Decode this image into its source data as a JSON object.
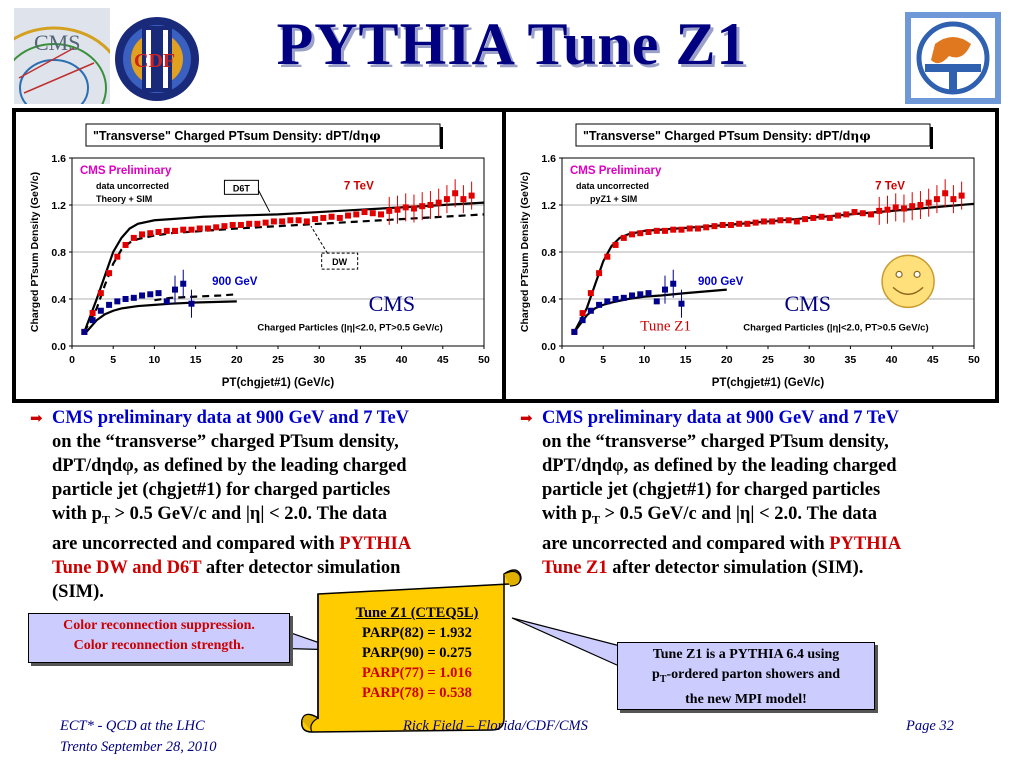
{
  "title": "PYTHIA Tune Z1",
  "colors": {
    "title": "#000080",
    "red": "#cc0000",
    "blue": "#0000cc",
    "callout_bg": "#ccccff",
    "scroll_bg": "#ffcc00"
  },
  "charts": {
    "left": {
      "title_pre": "\"Transverse\" Charged PTsum Density: dPT/d",
      "title_greek": "ηφ",
      "xlabel": "PT(chgjet#1) (GeV/c)",
      "ylabel": "Charged PTsum Density (GeV/c)",
      "prelim": "CMS Preliminary",
      "note1": "data uncorrected",
      "note2": "Theory + SIM",
      "label_7tev": "7 TeV",
      "label_900": "900 GeV",
      "label_cms": "CMS",
      "label_cuts": "Charged Particles (|η|<2.0, PT>0.5 GeV/c)",
      "box_d6t": "D6T",
      "box_dw": "DW"
    },
    "right": {
      "title_pre": "\"Transverse\" Charged PTsum Density: dPT/d",
      "title_greek": "ηφ",
      "xlabel": "PT(chgjet#1) (GeV/c)",
      "ylabel": "Charged PTsum Density (GeV/c)",
      "prelim": "CMS Preliminary",
      "note1": "data uncorrected",
      "note2": "pyZ1 + SIM",
      "label_7tev": "7 TeV",
      "label_900": "900 GeV",
      "label_cms": "CMS",
      "label_tune": "Tune Z1",
      "label_cuts": "Charged Particles (|η|<2.0, PT>0.5 GeV/c)"
    }
  },
  "chart_data": [
    {
      "type": "scatter",
      "title": "\"Transverse\" Charged PTsum Density: dPT/dηdφ",
      "xlabel": "PT(chgjet#1) (GeV/c)",
      "ylabel": "Charged PTsum Density (GeV/c)",
      "xlim": [
        0,
        50
      ],
      "ylim": [
        0.0,
        1.6
      ],
      "xticks": [
        0,
        5,
        10,
        15,
        20,
        25,
        30,
        35,
        40,
        45,
        50
      ],
      "yticks": [
        0.0,
        0.4,
        0.8,
        1.2,
        1.6
      ],
      "series": [
        {
          "name": "7 TeV",
          "kind": "points",
          "color": "#e00000",
          "x": [
            1.5,
            2.5,
            3.5,
            4.5,
            5.5,
            6.5,
            7.5,
            8.5,
            9.5,
            10.5,
            11.5,
            12.5,
            13.5,
            14.5,
            15.5,
            16.5,
            17.5,
            18.5,
            19.5,
            20.5,
            21.5,
            22.5,
            23.5,
            24.5,
            25.5,
            26.5,
            27.5,
            28.5,
            29.5,
            30.5,
            31.5,
            32.5,
            33.5,
            34.5,
            35.5,
            36.5,
            37.5,
            38.5,
            39.5,
            40.5,
            41.5,
            42.5,
            43.5,
            44.5,
            45.5,
            46.5,
            47.5,
            48.5
          ],
          "y": [
            0.12,
            0.28,
            0.45,
            0.62,
            0.76,
            0.86,
            0.92,
            0.95,
            0.96,
            0.97,
            0.98,
            0.98,
            0.99,
            0.99,
            1.0,
            1.0,
            1.01,
            1.02,
            1.03,
            1.03,
            1.04,
            1.04,
            1.05,
            1.06,
            1.06,
            1.07,
            1.07,
            1.06,
            1.08,
            1.09,
            1.1,
            1.09,
            1.11,
            1.12,
            1.14,
            1.13,
            1.12,
            1.15,
            1.16,
            1.18,
            1.17,
            1.19,
            1.2,
            1.22,
            1.25,
            1.3,
            1.25,
            1.28
          ]
        },
        {
          "name": "900 GeV",
          "kind": "points",
          "color": "#00008b",
          "x": [
            1.5,
            2.5,
            3.5,
            4.5,
            5.5,
            6.5,
            7.5,
            8.5,
            9.5,
            10.5,
            11.5,
            12.5,
            13.5,
            14.5
          ],
          "y": [
            0.12,
            0.22,
            0.3,
            0.35,
            0.38,
            0.4,
            0.41,
            0.43,
            0.44,
            0.45,
            0.38,
            0.48,
            0.53,
            0.36
          ]
        },
        {
          "name": "D6T",
          "kind": "line",
          "color": "#000000",
          "x": [
            1.5,
            3,
            4,
            5,
            6,
            7,
            8,
            10,
            12,
            14,
            16,
            20,
            25,
            30,
            35,
            40,
            45,
            50
          ],
          "y": [
            0.12,
            0.4,
            0.6,
            0.8,
            0.92,
            1.0,
            1.04,
            1.07,
            1.08,
            1.09,
            1.1,
            1.11,
            1.12,
            1.14,
            1.16,
            1.18,
            1.2,
            1.22
          ]
        },
        {
          "name": "DW",
          "kind": "dashed",
          "color": "#000000",
          "x": [
            1.5,
            3,
            4,
            5,
            6,
            7,
            8,
            10,
            12,
            14,
            16,
            20,
            25,
            30,
            35,
            40,
            45,
            50
          ],
          "y": [
            0.12,
            0.32,
            0.52,
            0.7,
            0.82,
            0.88,
            0.91,
            0.94,
            0.96,
            0.97,
            0.98,
            1.0,
            1.02,
            1.04,
            1.06,
            1.08,
            1.1,
            1.12
          ]
        },
        {
          "name": "900 GeV theory",
          "kind": "line",
          "color": "#000000",
          "x": [
            1.5,
            3,
            4,
            5,
            6,
            8,
            10,
            12,
            15,
            20
          ],
          "y": [
            0.1,
            0.22,
            0.27,
            0.3,
            0.32,
            0.34,
            0.35,
            0.36,
            0.37,
            0.38
          ]
        },
        {
          "name": "900 GeV theory DW",
          "kind": "dashed",
          "color": "#000000",
          "x": [
            10,
            12,
            15,
            18,
            20
          ],
          "y": [
            0.39,
            0.41,
            0.42,
            0.43,
            0.44
          ]
        }
      ]
    },
    {
      "type": "scatter",
      "title": "\"Transverse\" Charged PTsum Density: dPT/dηdφ",
      "xlabel": "PT(chgjet#1) (GeV/c)",
      "ylabel": "Charged PTsum Density (GeV/c)",
      "xlim": [
        0,
        50
      ],
      "ylim": [
        0.0,
        1.6
      ],
      "xticks": [
        0,
        5,
        10,
        15,
        20,
        25,
        30,
        35,
        40,
        45,
        50
      ],
      "yticks": [
        0.0,
        0.4,
        0.8,
        1.2,
        1.6
      ],
      "series": [
        {
          "name": "7 TeV",
          "kind": "points",
          "color": "#e00000",
          "x": [
            1.5,
            2.5,
            3.5,
            4.5,
            5.5,
            6.5,
            7.5,
            8.5,
            9.5,
            10.5,
            11.5,
            12.5,
            13.5,
            14.5,
            15.5,
            16.5,
            17.5,
            18.5,
            19.5,
            20.5,
            21.5,
            22.5,
            23.5,
            24.5,
            25.5,
            26.5,
            27.5,
            28.5,
            29.5,
            30.5,
            31.5,
            32.5,
            33.5,
            34.5,
            35.5,
            36.5,
            37.5,
            38.5,
            39.5,
            40.5,
            41.5,
            42.5,
            43.5,
            44.5,
            45.5,
            46.5,
            47.5,
            48.5
          ],
          "y": [
            0.12,
            0.28,
            0.45,
            0.62,
            0.76,
            0.86,
            0.92,
            0.95,
            0.96,
            0.97,
            0.98,
            0.98,
            0.99,
            0.99,
            1.0,
            1.0,
            1.01,
            1.02,
            1.03,
            1.03,
            1.04,
            1.04,
            1.05,
            1.06,
            1.06,
            1.07,
            1.07,
            1.06,
            1.08,
            1.09,
            1.1,
            1.09,
            1.11,
            1.12,
            1.14,
            1.13,
            1.12,
            1.15,
            1.16,
            1.18,
            1.17,
            1.19,
            1.2,
            1.22,
            1.25,
            1.3,
            1.25,
            1.28
          ]
        },
        {
          "name": "900 GeV",
          "kind": "points",
          "color": "#00008b",
          "x": [
            1.5,
            2.5,
            3.5,
            4.5,
            5.5,
            6.5,
            7.5,
            8.5,
            9.5,
            10.5,
            11.5,
            12.5,
            13.5,
            14.5
          ],
          "y": [
            0.12,
            0.22,
            0.3,
            0.35,
            0.38,
            0.4,
            0.41,
            0.43,
            0.44,
            0.45,
            0.38,
            0.48,
            0.53,
            0.36
          ]
        },
        {
          "name": "Z1",
          "kind": "line",
          "color": "#000000",
          "x": [
            1.5,
            3,
            4,
            5,
            6,
            7,
            8,
            10,
            12,
            14,
            16,
            20,
            25,
            30,
            35,
            40,
            45,
            50
          ],
          "y": [
            0.12,
            0.32,
            0.52,
            0.72,
            0.85,
            0.92,
            0.95,
            0.98,
            0.99,
            1.0,
            1.01,
            1.03,
            1.06,
            1.09,
            1.12,
            1.15,
            1.18,
            1.21
          ]
        },
        {
          "name": "Z1 900 GeV",
          "kind": "line",
          "color": "#000000",
          "x": [
            1.5,
            3,
            4,
            5,
            6,
            8,
            10,
            12,
            15,
            20
          ],
          "y": [
            0.12,
            0.26,
            0.32,
            0.35,
            0.37,
            0.4,
            0.42,
            0.43,
            0.45,
            0.48
          ]
        }
      ]
    }
  ],
  "bullets": {
    "left": {
      "l1": "CMS preliminary data at  900 GeV and 7 TeV",
      "l2": "on the “transverse” charged PTsum density,",
      "l3": "dPT/dηdφ, as defined by the leading charged",
      "l4": "particle jet (chgjet#1) for charged particles",
      "l5a": "with p",
      "l5sub": "T",
      "l5b": " > 0.5 GeV/c and |η| < 2.0.  The data",
      "l6a": "are uncorrected and compared with ",
      "l6b": "PYTHIA",
      "l7a": "Tune DW and D6T",
      "l7b": " after detector simulation",
      "l8": "(SIM)."
    },
    "right": {
      "l1": "CMS preliminary data at  900 GeV and 7 TeV",
      "l2": "on the “transverse” charged PTsum density,",
      "l3": "dPT/dηdφ, as defined by the leading charged",
      "l4": "particle jet (chgjet#1) for charged particles",
      "l5a": "with p",
      "l5sub": "T",
      "l5b": " > 0.5 GeV/c and |η| < 2.0.  The data",
      "l6a": "are uncorrected and compared with ",
      "l6b": "PYTHIA",
      "l7a": "Tune Z1",
      "l7b": " after detector simulation (SIM)."
    }
  },
  "scroll": {
    "title": "Tune Z1 (CTEQ5L)",
    "p1": "PARP(82) = 1.932",
    "p2": "PARP(90) = 0.275",
    "p3": "PARP(77) = 1.016",
    "p4": "PARP(78) = 0.538"
  },
  "callout_left": {
    "l1": "Color reconnection suppression.",
    "l2": "Color reconnection strength."
  },
  "callout_right": {
    "l1": "Tune Z1 is a PYTHIA 6.4 using",
    "l2a": "p",
    "l2sub": "T",
    "l2b": "-ordered parton showers and",
    "l3": "the new MPI model!"
  },
  "footer": {
    "left1": "ECT* - QCD at the LHC",
    "left2": "Trento  September 28, 2010",
    "center": "Rick Field – Florida/CDF/CMS",
    "right": "Page 32"
  },
  "logos": {
    "cms": "CMS",
    "cdf": "CDF"
  }
}
